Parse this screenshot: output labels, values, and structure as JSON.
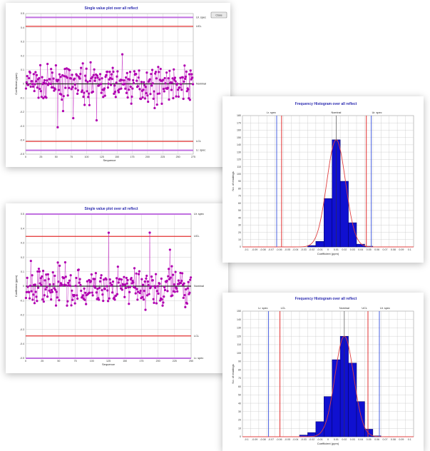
{
  "colors": {
    "marker": "#b000b0",
    "marker_line": "#c020c0",
    "center": "#222222",
    "limit": "#e23030",
    "spec": "#c070e0",
    "spec_blue": "#4a60e0",
    "bar": "#1010d0",
    "curve": "#e04040",
    "grid": "#c8c8c8"
  },
  "chart_data": [
    {
      "type": "scatter",
      "title": "Single value plot over all reflect",
      "xlabel": "Sequence",
      "ylabel": "Coefficient (ppm)",
      "button_label": "Close",
      "right_labels": {
        "upper_spec": "Ur. spec",
        "ucl": "UCL",
        "center": "Nominal",
        "lcl": "LCL",
        "lower_spec": "Lr. spec"
      },
      "x_ticks": [
        "0",
        "25",
        "50",
        "75",
        "100",
        "125",
        "150",
        "175",
        "200",
        "225",
        "250",
        "275"
      ],
      "y_ticks": [
        "0.5",
        "0.4",
        "0.3",
        "0.2",
        "0.1",
        "0",
        "-0.1",
        "-0.2",
        "-0.3",
        "-0.4",
        "-0.5"
      ],
      "ylim": [
        -0.55,
        0.55
      ],
      "xlim": [
        0,
        280
      ],
      "levels": {
        "upper_spec": 0.52,
        "ucl": 0.45,
        "center": 0.0,
        "lcl": -0.45,
        "lower_spec": -0.52
      },
      "n_points": 280,
      "spread": 0.09,
      "seed": 7
    },
    {
      "type": "scatter",
      "title": "Single value plot over all reflect",
      "xlabel": "Sequence",
      "ylabel": "Coefficient (ppm)",
      "right_labels": {
        "upper_spec": "Ur. spec",
        "ucl": "UCL",
        "center": "Nominal",
        "lcl": "LCL",
        "lower_spec": "Lr. spec"
      },
      "x_ticks": [
        "0",
        "25",
        "50",
        "75",
        "100",
        "125",
        "150",
        "175",
        "200",
        "225",
        "250"
      ],
      "y_ticks": [
        "0.5",
        "0.4",
        "0.3",
        "0.2",
        "0.1",
        "0",
        "-0.1",
        "-0.2",
        "-0.3",
        "-0.4",
        "-0.5"
      ],
      "ylim": [
        -0.55,
        0.55
      ],
      "xlim": [
        0,
        270
      ],
      "levels": {
        "upper_spec": 0.55,
        "ucl": 0.38,
        "center": 0.0,
        "lcl": -0.38,
        "lower_spec": -0.55
      },
      "n_points": 270,
      "spread": 0.1,
      "seed": 19
    },
    {
      "type": "bar",
      "title": "Frequency Histogram over all reflect",
      "xlabel": "Coefficient (ppm)",
      "ylabel": "No. of readings",
      "top_labels": {
        "lower_spec": "Lr. spec",
        "center": "Nominal",
        "upper_spec": "Ur. spec"
      },
      "categories": [
        "-0.1",
        "-0.09",
        "-0.08",
        "-0.07",
        "-0.06",
        "-0.05",
        "-0.04",
        "-0.03",
        "-0.02",
        "-0.01",
        "0",
        "0.01",
        "0.02",
        "0.03",
        "0.04",
        "0.05",
        "0.06",
        "0.07",
        "0.08",
        "0.09",
        "0.1"
      ],
      "values": [
        0,
        0,
        0,
        0,
        0,
        0,
        0,
        0,
        2,
        8,
        70,
        155,
        95,
        35,
        4,
        1,
        0,
        0,
        0,
        0,
        0
      ],
      "ylim": [
        0,
        190
      ],
      "y_ticks": [
        "0",
        "10",
        "20",
        "30",
        "40",
        "50",
        "60",
        "70",
        "80",
        "90",
        "100",
        "110",
        "120",
        "130",
        "140",
        "150",
        "160",
        "170",
        "180"
      ],
      "v_lines": {
        "lower_spec": 4.2,
        "lcl": 4.8,
        "ucl": 15.2,
        "upper_spec": 15.8
      }
    },
    {
      "type": "bar",
      "title": "Frequency Histogram over all reflect",
      "xlabel": "Coefficient (ppm)",
      "ylabel": "No. of readings",
      "top_labels": {
        "lower_spec": "Lr. spec",
        "lcl": "LCL",
        "center": "Nominal",
        "ucl": "UCL",
        "upper_spec": "Ur. spec"
      },
      "categories": [
        "-0.1",
        "-0.09",
        "-0.08",
        "-0.07",
        "-0.06",
        "-0.05",
        "-0.04",
        "-0.03",
        "-0.02",
        "-0.01",
        "0",
        "0.01",
        "0.02",
        "0.03",
        "0.04",
        "0.05",
        "0.06",
        "0.07",
        "0.08",
        "0.09",
        "0.1"
      ],
      "values": [
        0,
        0,
        0,
        0,
        0,
        0,
        0,
        2,
        5,
        18,
        48,
        92,
        120,
        88,
        42,
        9,
        1,
        0,
        0,
        0,
        0
      ],
      "ylim": [
        0,
        150
      ],
      "y_ticks": [
        "0",
        "10",
        "20",
        "30",
        "40",
        "50",
        "60",
        "70",
        "80",
        "90",
        "100",
        "110",
        "120",
        "130",
        "140",
        "150"
      ],
      "v_lines": {
        "lower_spec": 3.2,
        "lcl": 4.6,
        "ucl": 15.4,
        "upper_spec": 16.8
      }
    }
  ]
}
